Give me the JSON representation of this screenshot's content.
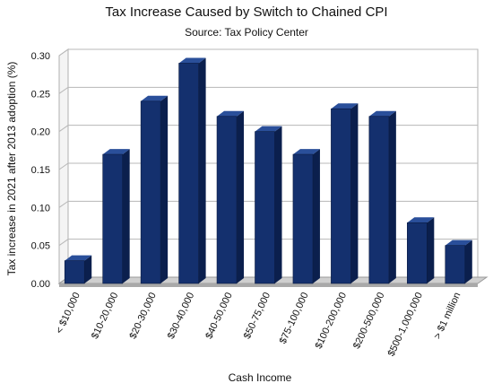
{
  "chart_data": {
    "type": "bar",
    "title": "Tax Increase Caused by Switch to Chained CPI",
    "subtitle": "Source: Tax Policy Center",
    "xlabel": "Cash Income",
    "ylabel": "Tax increase in 2021 after 2013 adoption (%)",
    "categories": [
      "< $10,000",
      "$10-20,000",
      "$20-30,000",
      "$30-40,000",
      "$40-50,000",
      "$50-75,000",
      "$75-100,000",
      "$100-200,000",
      "$200-500,000",
      "$500-1,000,000",
      "> $1 million"
    ],
    "values": [
      0.03,
      0.17,
      0.24,
      0.29,
      0.22,
      0.2,
      0.17,
      0.23,
      0.22,
      0.08,
      0.05
    ],
    "yticks": [
      "0.00",
      "0.05",
      "0.10",
      "0.15",
      "0.20",
      "0.25",
      "0.30"
    ],
    "ylim": [
      0,
      0.3
    ],
    "grid": true,
    "bar_color": "#14306e"
  }
}
